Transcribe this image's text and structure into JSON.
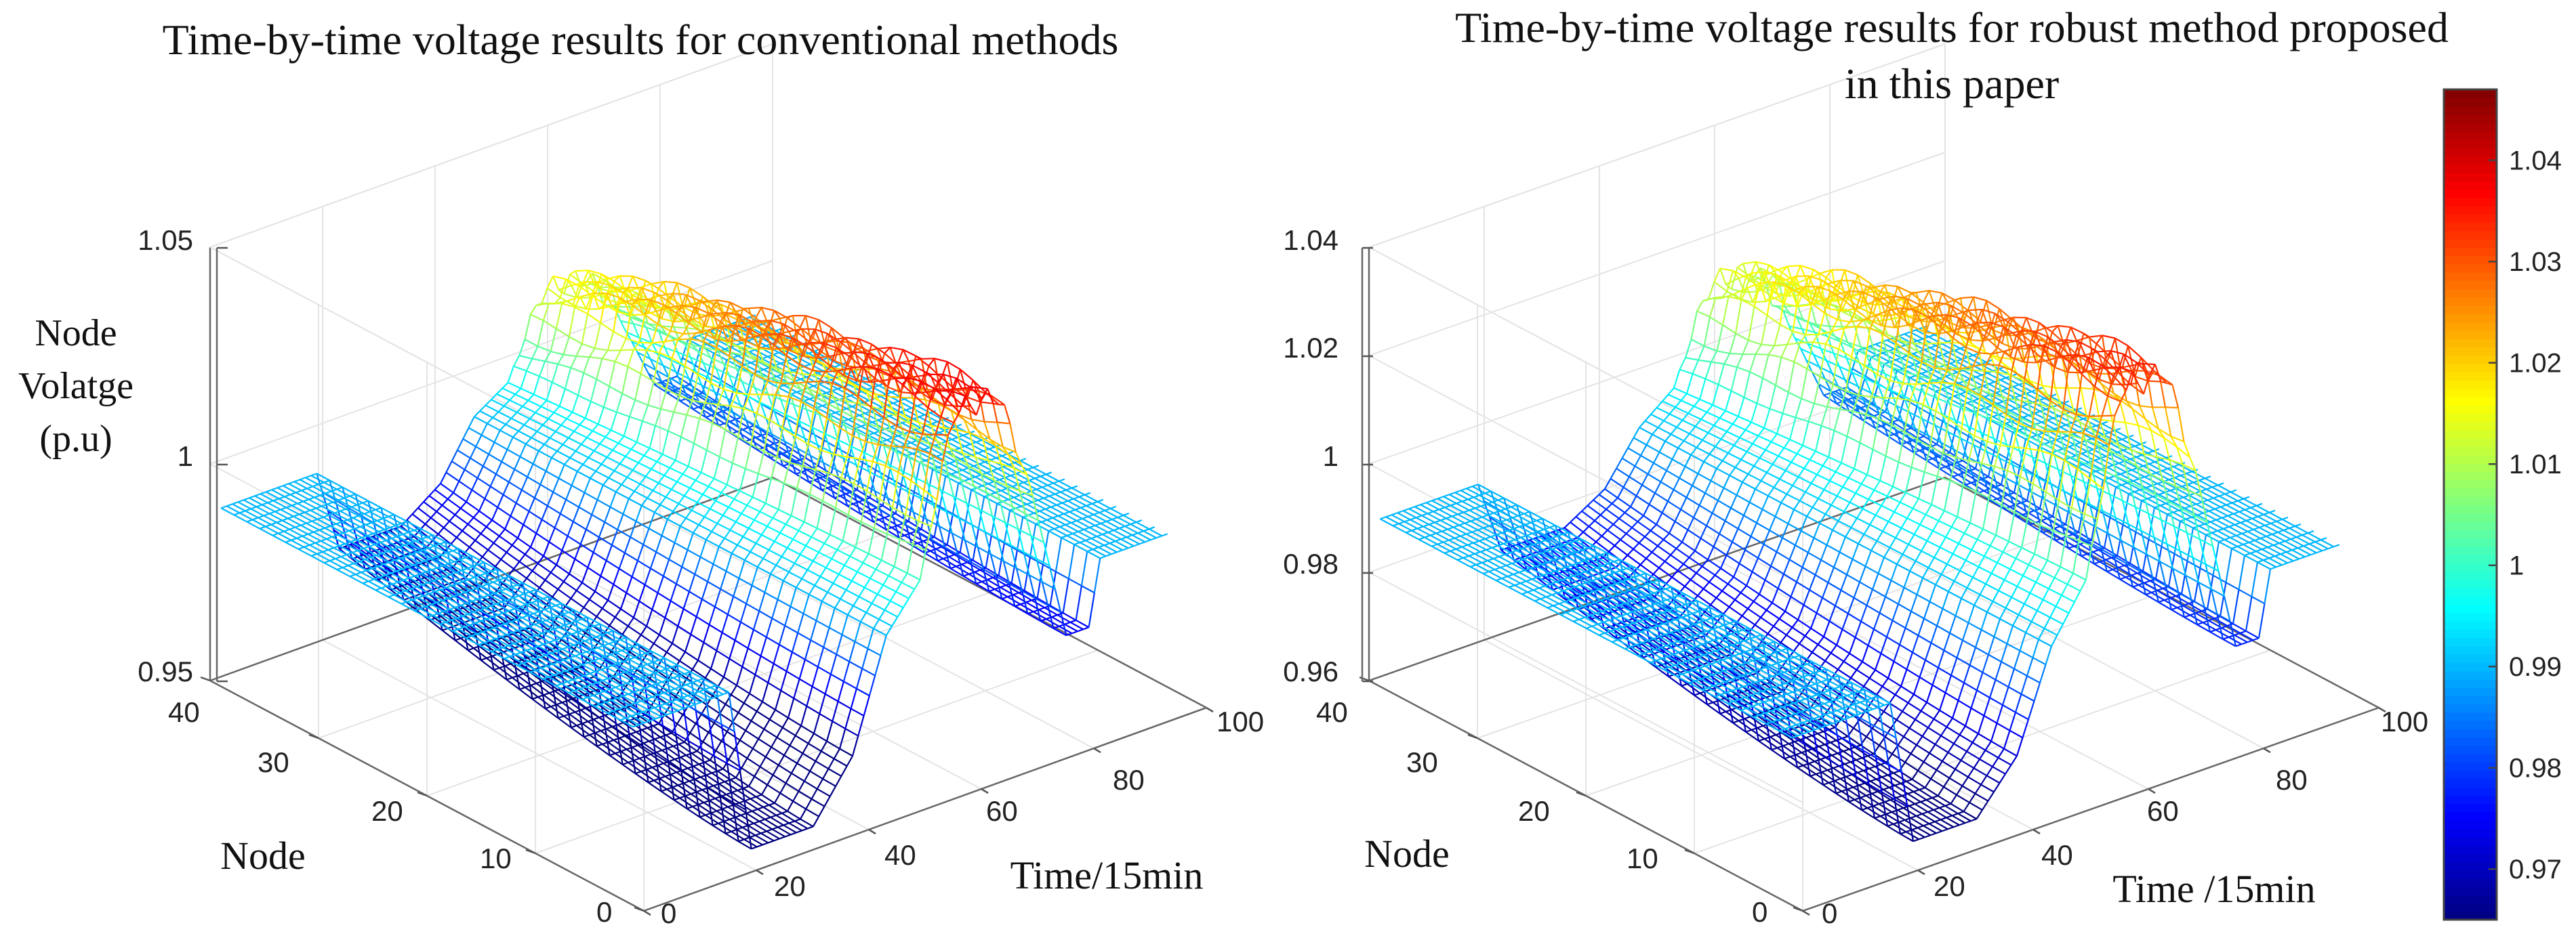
{
  "chart_data": [
    {
      "type": "surface",
      "title": "Time-by-time voltage results for conventional methods",
      "zlabel_lines": [
        "Node",
        "Volatge",
        "(p.u)"
      ],
      "xlabel": "Time/15min",
      "ylabel": "Node",
      "x_ticks": [
        "0",
        "20",
        "40",
        "60",
        "80",
        "100"
      ],
      "y_ticks": [
        "0",
        "10",
        "20",
        "30",
        "40"
      ],
      "z_ticks": [
        "0.95",
        "1",
        "1.05"
      ],
      "xlim": [
        0,
        100
      ],
      "ylim": [
        0,
        40
      ],
      "zlim": [
        0.95,
        1.05
      ],
      "time_points": 96,
      "nodes": 33,
      "node0_profile": [
        {
          "t": 1,
          "v": 0.99
        },
        {
          "t": 18,
          "v": 0.99
        },
        {
          "t": 22,
          "v": 0.952
        },
        {
          "t": 33,
          "v": 0.952
        },
        {
          "t": 40,
          "v": 0.965
        },
        {
          "t": 46,
          "v": 0.99
        },
        {
          "t": 52,
          "v": 1.0
        },
        {
          "t": 58,
          "v": 1.036
        },
        {
          "t": 66,
          "v": 1.036
        },
        {
          "t": 72,
          "v": 1.01
        },
        {
          "t": 78,
          "v": 0.975
        },
        {
          "t": 82,
          "v": 0.975
        },
        {
          "t": 84,
          "v": 0.99
        },
        {
          "t": 96,
          "v": 0.99
        }
      ],
      "node_drop_factor": 0.9,
      "ripple": 0.003
    },
    {
      "type": "surface",
      "title_lines": [
        "Time-by-time voltage results for robust method proposed",
        "in this paper"
      ],
      "xlabel": "Time /15min",
      "ylabel": "Node",
      "x_ticks": [
        "0",
        "20",
        "40",
        "60",
        "80",
        "100"
      ],
      "y_ticks": [
        "0",
        "10",
        "20",
        "30",
        "40"
      ],
      "z_ticks": [
        "0.96",
        "0.98",
        "1",
        "1.02",
        "1.04"
      ],
      "xlim": [
        0,
        100
      ],
      "ylim": [
        0,
        40
      ],
      "zlim": [
        0.96,
        1.04
      ],
      "time_points": 96,
      "nodes": 33,
      "node0_profile": [
        {
          "t": 1,
          "v": 0.99
        },
        {
          "t": 18,
          "v": 0.99
        },
        {
          "t": 22,
          "v": 0.963
        },
        {
          "t": 33,
          "v": 0.963
        },
        {
          "t": 40,
          "v": 0.972
        },
        {
          "t": 46,
          "v": 0.99
        },
        {
          "t": 52,
          "v": 1.0
        },
        {
          "t": 58,
          "v": 1.033
        },
        {
          "t": 66,
          "v": 1.033
        },
        {
          "t": 72,
          "v": 1.008
        },
        {
          "t": 78,
          "v": 0.978
        },
        {
          "t": 82,
          "v": 0.978
        },
        {
          "t": 84,
          "v": 0.99
        },
        {
          "t": 96,
          "v": 0.99
        }
      ],
      "node_drop_factor": 0.9,
      "ripple": 0.003
    }
  ],
  "colorbar": {
    "range": [
      0.965,
      1.047
    ],
    "ticks": [
      "0.97",
      "0.98",
      "0.99",
      "1",
      "1.01",
      "1.02",
      "1.03",
      "1.04"
    ],
    "tick_values": [
      0.97,
      0.98,
      0.99,
      1.0,
      1.01,
      1.02,
      1.03,
      1.04
    ],
    "colormap": "jet",
    "segments": 100
  }
}
